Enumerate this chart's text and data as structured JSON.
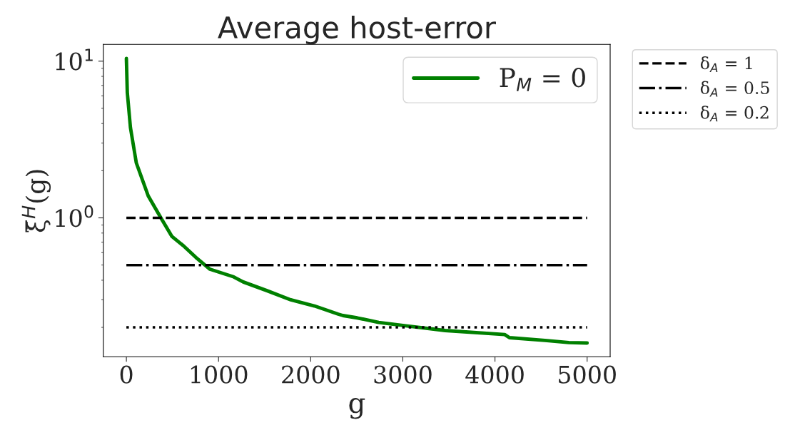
{
  "chart_data": {
    "type": "line",
    "title": "Average host-error",
    "xlabel": "g",
    "ylabel": "ξ̄$^{H}$(g)",
    "x": [
      0,
      10,
      44,
      108,
      237,
      379,
      495,
      624,
      753,
      907,
      1165,
      1268,
      1526,
      1784,
      2041,
      2299,
      2351,
      2505,
      2738,
      3048,
      3460,
      4105,
      4157,
      4543,
      4801,
      5000
    ],
    "series": [
      {
        "name": "P$_{M}$ = 0",
        "color": "#008000",
        "values": [
          10.4,
          6.3,
          3.77,
          2.24,
          1.38,
          0.99,
          0.76,
          0.66,
          0.56,
          0.47,
          0.42,
          0.39,
          0.343,
          0.3,
          0.274,
          0.243,
          0.238,
          0.23,
          0.215,
          0.204,
          0.191,
          0.18,
          0.172,
          0.165,
          0.16,
          0.159
        ]
      }
    ],
    "ref_lines": [
      {
        "axis": "y",
        "value": 1,
        "label": "δ$_{A}$ = 1",
        "line_style": "dashed",
        "color": "#000000"
      },
      {
        "axis": "y",
        "value": 0.5,
        "label": "δ$_{A}$ = 0.5",
        "line_style": "dashdot",
        "color": "#000000"
      },
      {
        "axis": "y",
        "value": 0.2,
        "label": "δ$_{A}$ = 0.2",
        "line_style": "dotted",
        "color": "#000000"
      }
    ],
    "log": "y",
    "xlim": [
      -250,
      5250
    ],
    "ylim": [
      0.13,
      12.8
    ],
    "xticks": [
      0,
      1000,
      2000,
      3000,
      4000,
      5000
    ],
    "yticks": [
      {
        "value": 1,
        "label": "10$^{0}$"
      },
      {
        "value": 10,
        "label": "10$^{1}$"
      }
    ],
    "grid": false,
    "legend": "top right",
    "marker": "none",
    "line_style": "solid"
  }
}
